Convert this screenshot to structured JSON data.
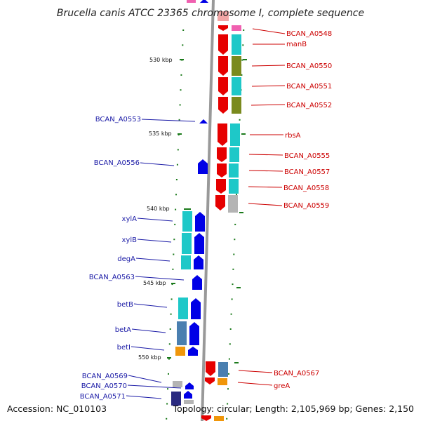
{
  "title": "Brucella canis ATCC 23365 chromosome I, complete sequence",
  "footer": {
    "accession": "Accession: NC_010103",
    "topology": "Topology: circular; Length: 2,105,969 bp; Genes: 2,150"
  },
  "colors": {
    "backbone": "#999999",
    "tick": "#1b7a1b",
    "forward_gene": "#0000e6",
    "reverse_gene": "#e60000",
    "left_label": "#1a1aa6",
    "right_label": "#cc0000",
    "cog_cyan": "#1ec8c8",
    "cog_olive": "#7a8a1e",
    "cog_gray": "#b4b4b4",
    "cog_steel": "#4a7fb0",
    "cog_orange": "#f0960a",
    "cog_pink": "#f060b0",
    "cog_navy": "#2a2a80"
  },
  "scale_labels": [
    "530 kbp",
    "535 kbp",
    "540 kbp",
    "545 kbp",
    "550 kbp"
  ],
  "left_labels": [
    "BCAN_A0553",
    "BCAN_A0556",
    "xylA",
    "xylB",
    "degA",
    "BCAN_A0563",
    "betB",
    "betA",
    "betI",
    "BCAN_A0569",
    "BCAN_A0570",
    "BCAN_A0571"
  ],
  "right_labels": [
    "BCAN_A0548",
    "manB",
    "BCAN_A0550",
    "BCAN_A0551",
    "BCAN_A0552",
    "rbsA",
    "BCAN_A0555",
    "BCAN_A0557",
    "BCAN_A0558",
    "BCAN_A0559",
    "BCAN_A0567",
    "greA"
  ]
}
